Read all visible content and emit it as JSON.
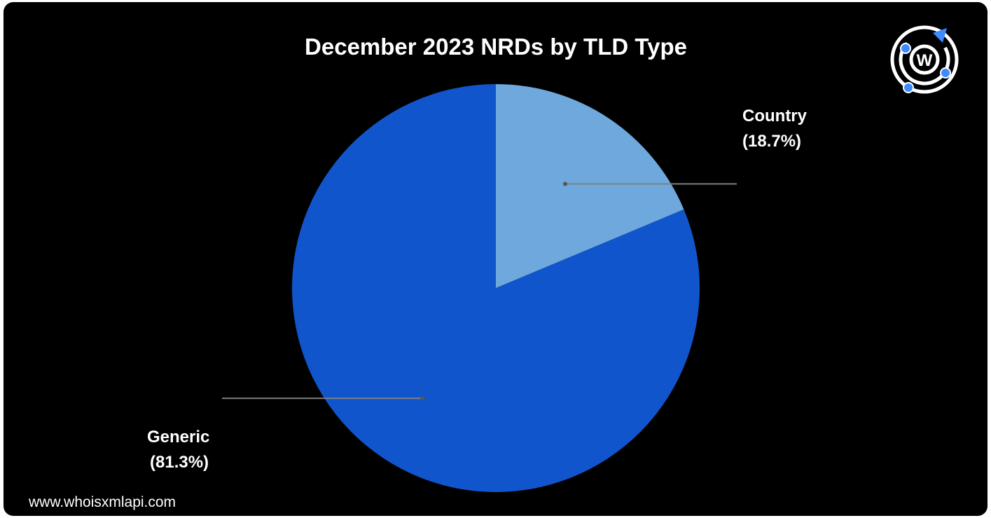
{
  "chart_data": {
    "type": "pie",
    "title": "December 2023 NRDs by TLD Type",
    "slices": [
      {
        "label": "Country",
        "percent_label": "(18.7%)",
        "value": 18.7,
        "color": "#6fa8dc"
      },
      {
        "label": "Generic",
        "percent_label": "(81.3%)",
        "value": 81.3,
        "color": "#1155cc"
      }
    ],
    "legend": "none",
    "start_angle": "12 o'clock",
    "direction": "clockwise",
    "label_style": "callout lines"
  },
  "footer": {
    "website": "www.whoisxmlapi.com"
  },
  "logo": {
    "letter": "W",
    "accent_color": "#3d8bff"
  },
  "colors": {
    "background": "#000000",
    "text": "#ffffff",
    "leader_line": "#808080"
  }
}
